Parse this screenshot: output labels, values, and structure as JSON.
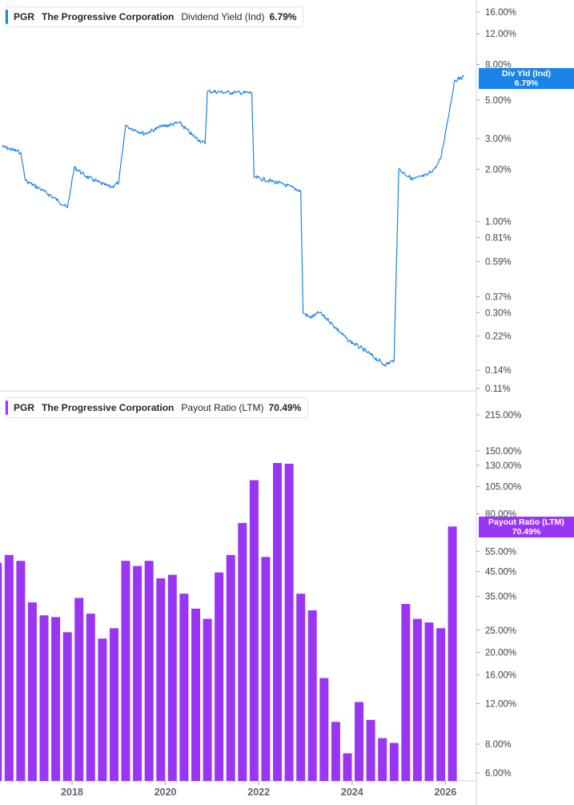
{
  "top": {
    "legend": {
      "ticker": "PGR",
      "company": "The Progressive Corporation",
      "metric": "Dividend Yield (Ind)",
      "value": "6.79%"
    },
    "current_label": "Div Yld (Ind)",
    "current_value": "6.79%",
    "color": "#1a84e8"
  },
  "bottom": {
    "legend": {
      "ticker": "PGR",
      "company": "The Progressive Corporation",
      "metric": "Payout Ratio (LTM)",
      "value": "70.49%"
    },
    "current_label": "Payout Ratio (LTM)",
    "current_value": "70.49%",
    "color": "#9b35f6"
  },
  "chart_data": [
    {
      "type": "line",
      "scale": "log",
      "ylim": [
        0.11,
        16.0
      ],
      "y_ticks": [
        "16.00%",
        "12.00%",
        "8.00%",
        "5.00%",
        "3.00%",
        "2.00%",
        "1.00%",
        "0.81%",
        "0.59%",
        "0.37%",
        "0.30%",
        "0.22%",
        "0.14%",
        "0.11%"
      ],
      "y_tick_values": [
        16.0,
        12.0,
        8.0,
        5.0,
        3.0,
        2.0,
        1.0,
        0.81,
        0.59,
        0.37,
        0.3,
        0.22,
        0.14,
        0.11
      ],
      "x_ticks": [
        "2018",
        "2020",
        "2022",
        "2024",
        "2026"
      ],
      "x_tick_values": [
        2018,
        2020,
        2022,
        2024,
        2026
      ],
      "series": [
        {
          "x": [
            2016.5,
            2016.9,
            2017.0,
            2017.3,
            2017.6,
            2017.9,
            2018.05,
            2018.3,
            2018.7,
            2018.85,
            2019.0,
            2019.15,
            2019.2,
            2019.55,
            2019.9,
            2020.3,
            2020.6,
            2020.85,
            2020.9,
            2021.5,
            2021.85,
            2021.9,
            2022.3,
            2022.5,
            2022.9,
            2022.95,
            2023.1,
            2023.3,
            2023.5,
            2023.9,
            2024.3,
            2024.7,
            2024.9,
            2025.0,
            2025.3,
            2025.6,
            2025.8,
            2025.9,
            2026.2,
            2026.4
          ],
          "y": [
            2.7,
            2.5,
            1.72,
            1.55,
            1.38,
            1.2,
            2.05,
            1.82,
            1.62,
            1.58,
            1.68,
            3.6,
            3.5,
            3.2,
            3.5,
            3.7,
            3.1,
            2.8,
            5.6,
            5.5,
            5.5,
            1.8,
            1.7,
            1.65,
            1.5,
            0.3,
            0.28,
            0.3,
            0.27,
            0.21,
            0.18,
            0.15,
            0.16,
            2.0,
            1.75,
            1.85,
            2.05,
            2.3,
            6.5,
            6.79
          ]
        }
      ]
    },
    {
      "type": "bar",
      "scale": "log",
      "ylim": [
        6.0,
        215.0
      ],
      "y_ticks": [
        "215.00%",
        "150.00%",
        "130.00%",
        "105.00%",
        "80.00%",
        "55.00%",
        "45.00%",
        "35.00%",
        "25.00%",
        "20.00%",
        "16.00%",
        "12.00%",
        "8.00%",
        "6.00%"
      ],
      "y_tick_values": [
        215,
        150,
        130,
        105,
        80,
        55,
        45,
        35,
        25,
        20,
        16,
        12,
        8,
        6
      ],
      "x_ticks": [
        "2018",
        "2020",
        "2022",
        "2024",
        "2026"
      ],
      "x_tick_values": [
        2018,
        2020,
        2022,
        2024,
        2026
      ],
      "series": [
        {
          "x": [
            2016.4,
            2016.65,
            2016.9,
            2017.15,
            2017.4,
            2017.65,
            2017.9,
            2018.15,
            2018.4,
            2018.65,
            2018.9,
            2019.15,
            2019.4,
            2019.65,
            2019.9,
            2020.15,
            2020.4,
            2020.65,
            2020.9,
            2021.15,
            2021.4,
            2021.65,
            2021.9,
            2022.15,
            2022.4,
            2022.65,
            2022.9,
            2023.15,
            2023.4,
            2023.65,
            2023.9,
            2024.15,
            2024.4,
            2024.65,
            2024.9,
            2025.15,
            2025.4,
            2025.65,
            2025.9,
            2026.15
          ],
          "y": [
            49,
            53,
            50,
            33,
            29,
            28.5,
            24.5,
            34.5,
            29.5,
            23,
            25.5,
            50,
            47.5,
            50,
            42,
            43.5,
            36,
            31,
            28,
            44.5,
            53,
            73,
            112,
            52,
            133,
            132,
            36,
            30.5,
            15.5,
            10,
            7.3,
            12.2,
            10.2,
            8.5,
            8.1,
            32.5,
            28,
            27,
            25.5,
            70.49
          ]
        }
      ]
    }
  ]
}
